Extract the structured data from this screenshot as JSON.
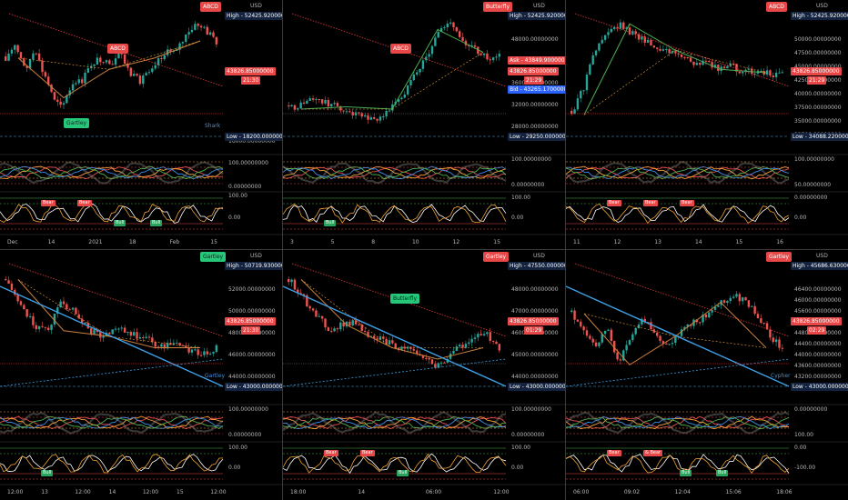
{
  "currency": "USD",
  "panes": [
    {
      "id": "p1",
      "x_labels": [
        "Dec",
        "14",
        "2021",
        "18",
        "Feb",
        "15"
      ],
      "y_labels": [
        "100.00000000",
        "0.00000000",
        "100.00",
        "0.00",
        "16000.00000000"
      ],
      "high": "High - 52425.92000000",
      "price": "43826.85000000",
      "timer": "21:30",
      "low": "Low - 18200.00000000",
      "patterns": [
        {
          "label": "ABCD",
          "color": "red"
        },
        {
          "label": "ABCD",
          "color": "red"
        },
        {
          "label": "Gartley",
          "color": "green"
        }
      ],
      "note": "Shark",
      "osc_tags": [
        {
          "label": "Bear",
          "color": "red"
        },
        {
          "label": "Bear",
          "color": "red"
        },
        {
          "label": "Bull",
          "color": "green"
        },
        {
          "label": "Bull",
          "color": "green"
        }
      ]
    },
    {
      "id": "p2",
      "x_labels": [
        "3",
        "5",
        "8",
        "10",
        "12",
        "15"
      ],
      "y_labels": [
        "48000.00000000",
        "40000.00000000",
        "36000.00000000",
        "32000.00000000",
        "28000.00000000",
        "100.00000000",
        "0.00000000",
        "100.00",
        "0.00"
      ],
      "high": "High - 52425.92000000",
      "ask": "Ask - 43849.90000000",
      "price": "43826.85000000",
      "timer": "21:29",
      "bid": "Bid - 43265.17000000",
      "low": "Low - 29250.00000000",
      "patterns": [
        {
          "label": "Butterfly",
          "color": "red"
        },
        {
          "label": "ABCD",
          "color": "red"
        }
      ],
      "osc_tags": [
        {
          "label": "Bull",
          "color": "green"
        }
      ]
    },
    {
      "id": "p3",
      "x_labels": [
        "11",
        "12",
        "13",
        "14",
        "15",
        "16"
      ],
      "y_labels": [
        "50000.00000000",
        "47500.00000000",
        "45000.00000000",
        "42500.00000000",
        "40000.00000000",
        "37500.00000000",
        "35000.00000000",
        "32500.00000000",
        "100.00000000",
        "50.00000000",
        "0.00000000",
        "0.00"
      ],
      "high": "High - 52425.92000000",
      "price": "43826.85000000",
      "timer": "21:29",
      "low": "Low - 34088.22000000",
      "patterns": [
        {
          "label": "ABCD",
          "color": "red"
        }
      ],
      "osc_tags": [
        {
          "label": "Bear",
          "color": "red"
        },
        {
          "label": "Bear",
          "color": "red"
        },
        {
          "label": "Bear",
          "color": "red"
        }
      ]
    },
    {
      "id": "p4",
      "x_labels": [
        "12:00",
        "13",
        "12:00",
        "14",
        "12:00",
        "15",
        "12:00"
      ],
      "y_labels": [
        "52000.00000000",
        "50000.00000000",
        "48000.00000000",
        "46000.00000000",
        "44000.00000000",
        "100.00000000",
        "0.00000000",
        "100.00",
        "0.00"
      ],
      "high": "High - 50719.93000000",
      "price": "43826.85000000",
      "timer": "21:30",
      "low": "Low - 43000.00000000",
      "patterns": [
        {
          "label": "Gartley",
          "color": "green"
        }
      ],
      "note": "Gartley",
      "osc_tags": [
        {
          "label": "Bull",
          "color": "green"
        }
      ]
    },
    {
      "id": "p5",
      "x_labels": [
        "18:00",
        "14",
        "06:00",
        "12:00"
      ],
      "y_labels": [
        "48000.00000000",
        "47000.00000000",
        "46000.00000000",
        "45000.00000000",
        "44000.00000000",
        "100.00000000",
        "0.00000000",
        "100.00",
        "0.00"
      ],
      "high": "High - 47550.00000000",
      "price": "43826.85000000",
      "timer": "01:29",
      "low": "Low - 43000.00000000",
      "patterns": [
        {
          "label": "Gartley",
          "color": "red"
        },
        {
          "label": "Butterfly",
          "color": "green"
        }
      ],
      "osc_tags": [
        {
          "label": "Bear",
          "color": "red"
        },
        {
          "label": "Bear",
          "color": "red"
        },
        {
          "label": "Bull",
          "color": "green"
        }
      ]
    },
    {
      "id": "p6",
      "x_labels": [
        "06:00",
        "09:02",
        "12:04",
        "15:06",
        "18:06"
      ],
      "y_labels": [
        "46400.00000000",
        "46000.00000000",
        "45600.00000000",
        "45200.00000000",
        "44800.00000000",
        "44400.00000000",
        "44000.00000000",
        "43600.00000000",
        "43200.00000000",
        "100.00000000",
        "0.00000000",
        "100.00",
        "0.00",
        "-100.00"
      ],
      "high": "High - 45686.63000000",
      "price": "43826.85000000",
      "timer": "02:29",
      "low": "Low - 43000.00000000",
      "patterns": [
        {
          "label": "Gartley",
          "color": "red"
        }
      ],
      "note": "Cypher",
      "osc_tags": [
        {
          "label": "Bear",
          "color": "red"
        },
        {
          "label": "& Bear",
          "color": "red"
        },
        {
          "label": "Bull",
          "color": "green"
        },
        {
          "label": "Bull",
          "color": "green"
        }
      ]
    }
  ],
  "colors": {
    "up": "#26a69a",
    "down": "#ef5350",
    "pattern_orange": "#c8803c",
    "pattern_green": "#4caf50",
    "trend_blue": "#3ea0e6",
    "trend_red": "#e03b3b"
  }
}
